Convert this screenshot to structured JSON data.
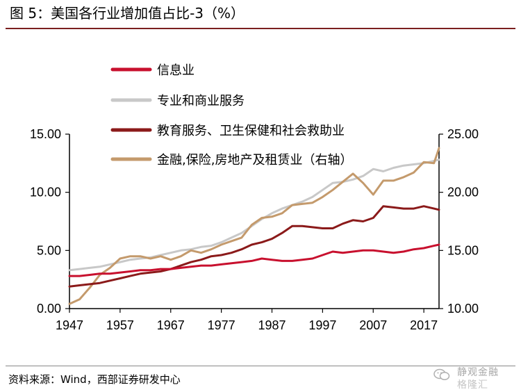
{
  "title": "图 5：美国各行业增加值占比-3（%）",
  "source": "资料来源：Wind，西部证券研发中心",
  "watermark": {
    "line1": "静观金融",
    "line2": "格隆汇"
  },
  "chart_data": {
    "type": "line",
    "x": [
      1947,
      1949,
      1951,
      1953,
      1955,
      1957,
      1959,
      1961,
      1963,
      1965,
      1967,
      1969,
      1971,
      1973,
      1975,
      1977,
      1979,
      1981,
      1983,
      1985,
      1987,
      1989,
      1991,
      1993,
      1995,
      1997,
      1999,
      2001,
      2003,
      2005,
      2007,
      2009,
      2011,
      2013,
      2015,
      2017,
      2019,
      2020
    ],
    "xticks": [
      "1947",
      "1957",
      "1967",
      "1977",
      "1987",
      "1997",
      "2007",
      "2017"
    ],
    "y_left": {
      "ylim": [
        0,
        15
      ],
      "ticks": [
        "0.00",
        "5.00",
        "10.00",
        "15.00"
      ]
    },
    "y_right": {
      "ylim": [
        10,
        25
      ],
      "ticks": [
        "10.00",
        "15.00",
        "20.00",
        "25.00"
      ]
    },
    "series": [
      {
        "name": "信息业",
        "axis": "left",
        "color": "#c8102e",
        "values": [
          2.8,
          2.8,
          2.9,
          3.0,
          3.0,
          3.1,
          3.2,
          3.3,
          3.3,
          3.4,
          3.4,
          3.5,
          3.6,
          3.7,
          3.7,
          3.8,
          3.9,
          4.0,
          4.1,
          4.3,
          4.2,
          4.1,
          4.1,
          4.2,
          4.3,
          4.6,
          4.9,
          4.8,
          4.9,
          5.0,
          5.0,
          4.9,
          4.8,
          4.9,
          5.1,
          5.2,
          5.4,
          5.5
        ]
      },
      {
        "name": "专业和商业服务",
        "axis": "left",
        "color": "#c8c8c8",
        "values": [
          3.3,
          3.4,
          3.5,
          3.6,
          3.8,
          4.0,
          4.2,
          4.3,
          4.4,
          4.6,
          4.8,
          5.0,
          5.1,
          5.3,
          5.4,
          5.7,
          6.1,
          6.5,
          7.1,
          7.7,
          8.2,
          8.6,
          8.9,
          9.2,
          9.6,
          10.2,
          10.8,
          10.9,
          11.1,
          11.4,
          12.0,
          11.8,
          12.1,
          12.3,
          12.4,
          12.5,
          12.7,
          12.8
        ]
      },
      {
        "name": "教育服务、卫生保健和社会救助业",
        "axis": "left",
        "color": "#8b1a1a",
        "values": [
          1.9,
          2.0,
          2.1,
          2.2,
          2.4,
          2.6,
          2.8,
          3.0,
          3.1,
          3.2,
          3.4,
          3.7,
          4.0,
          4.2,
          4.5,
          4.6,
          4.8,
          5.1,
          5.5,
          5.7,
          6.0,
          6.5,
          7.1,
          7.1,
          7.0,
          6.9,
          6.9,
          7.3,
          7.6,
          7.5,
          7.8,
          8.8,
          8.7,
          8.6,
          8.6,
          8.8,
          8.6,
          8.5
        ]
      },
      {
        "name": "金融,保险,房地产及租赁业（右轴）",
        "axis": "right",
        "color": "#c49a6c",
        "values": [
          10.4,
          10.8,
          11.8,
          12.9,
          13.5,
          14.3,
          14.5,
          14.5,
          14.3,
          14.5,
          14.2,
          14.5,
          15.0,
          14.8,
          15.1,
          15.5,
          15.8,
          16.1,
          17.2,
          17.8,
          17.9,
          18.2,
          18.9,
          19.0,
          19.1,
          19.6,
          20.2,
          20.9,
          21.6,
          20.8,
          19.8,
          21.0,
          21.0,
          21.3,
          21.7,
          22.6,
          22.5,
          23.8
        ]
      }
    ]
  }
}
